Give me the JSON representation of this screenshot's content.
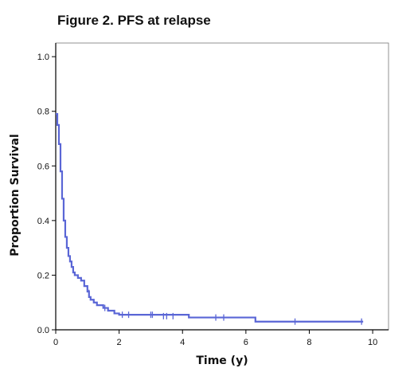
{
  "figure_title": "Figure 2. PFS at relapse",
  "colors": {
    "curve": "#5a66d6",
    "axis": "#000000",
    "frame": "#777777",
    "text": "#111111"
  },
  "chart_data": {
    "type": "line",
    "subtype": "kaplan-meier-step",
    "title": "Figure 2. PFS at relapse",
    "xlabel": "Time (y)",
    "ylabel": "Proportion Survival",
    "xlim": [
      0,
      10.5
    ],
    "ylim": [
      0,
      1.05
    ],
    "xticks": [
      0,
      2,
      4,
      6,
      8,
      10
    ],
    "yticks": [
      0.0,
      0.2,
      0.4,
      0.6,
      0.8,
      1.0
    ],
    "xtick_labels": [
      "0",
      "2",
      "4",
      "6",
      "8",
      "10"
    ],
    "ytick_labels": [
      "0.0",
      "0.2",
      "0.4",
      "0.6",
      "0.8",
      "1.0"
    ],
    "grid": false,
    "legend": "none",
    "series": [
      {
        "step_points": [
          [
            0.0,
            0.79
          ],
          [
            0.05,
            0.75
          ],
          [
            0.1,
            0.68
          ],
          [
            0.15,
            0.58
          ],
          [
            0.2,
            0.48
          ],
          [
            0.25,
            0.4
          ],
          [
            0.3,
            0.34
          ],
          [
            0.35,
            0.3
          ],
          [
            0.4,
            0.27
          ],
          [
            0.45,
            0.25
          ],
          [
            0.5,
            0.23
          ],
          [
            0.55,
            0.21
          ],
          [
            0.6,
            0.2
          ],
          [
            0.7,
            0.19
          ],
          [
            0.8,
            0.18
          ],
          [
            0.9,
            0.16
          ],
          [
            1.0,
            0.14
          ],
          [
            1.05,
            0.12
          ],
          [
            1.1,
            0.11
          ],
          [
            1.2,
            0.1
          ],
          [
            1.3,
            0.09
          ],
          [
            1.5,
            0.08
          ],
          [
            1.65,
            0.07
          ],
          [
            1.85,
            0.06
          ],
          [
            2.0,
            0.055
          ],
          [
            4.2,
            0.045
          ],
          [
            6.3,
            0.03
          ],
          [
            9.7,
            0.03
          ]
        ],
        "censored": [
          [
            1.05,
            0.135
          ],
          [
            1.55,
            0.08
          ],
          [
            2.1,
            0.055
          ],
          [
            2.3,
            0.055
          ],
          [
            3.0,
            0.055
          ],
          [
            3.05,
            0.055
          ],
          [
            3.4,
            0.05
          ],
          [
            3.5,
            0.05
          ],
          [
            3.7,
            0.05
          ],
          [
            5.05,
            0.045
          ],
          [
            5.3,
            0.045
          ],
          [
            7.55,
            0.03
          ],
          [
            9.65,
            0.03
          ]
        ]
      }
    ]
  }
}
